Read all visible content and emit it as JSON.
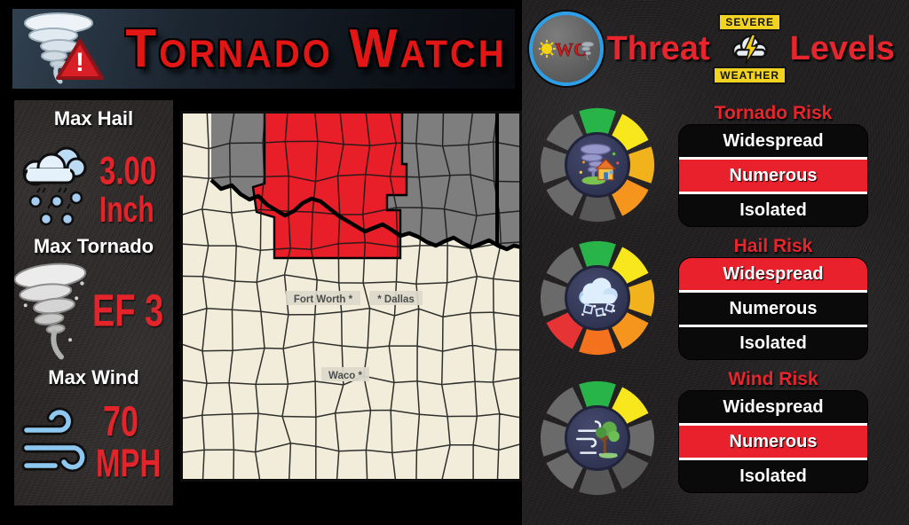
{
  "colors": {
    "accent_red": "#e8252d",
    "map_cream": "#f1edda",
    "map_gray": "#7e7e7e",
    "map_red": "#e81e28",
    "wheel": {
      "green": "#29b44a",
      "yellow": "#f8e71c",
      "amber": "#f2b21c",
      "orange": "#f6951e",
      "deeporange": "#f4711d",
      "red": "#e63434",
      "gray": "#6a6a6a",
      "darkgray": "#575757"
    }
  },
  "title_banner": {
    "title": "Tornado Watch",
    "icon": "tornado-warning-icon"
  },
  "threat_banner": {
    "logo_text": "WC",
    "left_word": "Threat",
    "right_word": "Levels",
    "badge_top": "SEVERE",
    "badge_bottom": "WEATHER"
  },
  "stats": [
    {
      "label": "Max Hail",
      "value": "3.00",
      "unit": "Inch",
      "icon": "hail-cloud-icon"
    },
    {
      "label": "Max Tornado",
      "value": "EF 3",
      "unit": "",
      "icon": "tornado-icon"
    },
    {
      "label": "Max Wind",
      "value": "70",
      "unit": "MPH",
      "icon": "wind-gust-icon"
    }
  ],
  "map": {
    "cities": [
      {
        "label": "Fort Worth *"
      },
      {
        "label": "* Dallas"
      },
      {
        "label": "Waco *"
      }
    ]
  },
  "risk_panels": [
    {
      "title": "Tornado Risk",
      "levels": [
        "Widespread",
        "Numerous",
        "Isolated"
      ],
      "selected": "Numerous",
      "wheel_segments": [
        "green",
        "yellow",
        "amber",
        "orange",
        "darkgray",
        "gray",
        "gray",
        "gray"
      ],
      "center_icon": "tornado-house-icon"
    },
    {
      "title": "Hail Risk",
      "levels": [
        "Widespread",
        "Numerous",
        "Isolated"
      ],
      "selected": "Widespread",
      "wheel_segments": [
        "green",
        "yellow",
        "amber",
        "orange",
        "deeporange",
        "red",
        "gray",
        "gray"
      ],
      "center_icon": "hail-cloud-icon"
    },
    {
      "title": "Wind Risk",
      "levels": [
        "Widespread",
        "Numerous",
        "Isolated"
      ],
      "selected": "Numerous",
      "wheel_segments": [
        "green",
        "yellow",
        "gray",
        "darkgray",
        "darkgray",
        "gray",
        "gray",
        "gray"
      ],
      "center_icon": "wind-tree-icon"
    }
  ]
}
